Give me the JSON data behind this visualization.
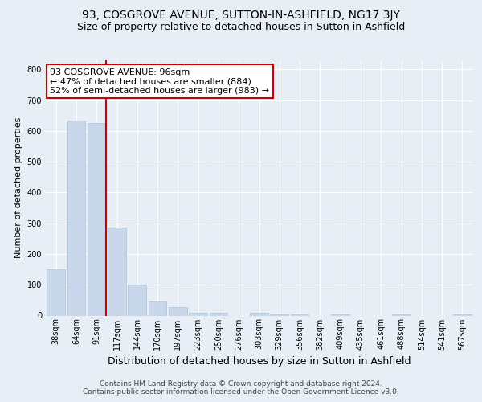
{
  "title1": "93, COSGROVE AVENUE, SUTTON-IN-ASHFIELD, NG17 3JY",
  "title2": "Size of property relative to detached houses in Sutton in Ashfield",
  "xlabel": "Distribution of detached houses by size in Sutton in Ashfield",
  "ylabel": "Number of detached properties",
  "footnote": "Contains HM Land Registry data © Crown copyright and database right 2024.\nContains public sector information licensed under the Open Government Licence v3.0.",
  "categories": [
    "38sqm",
    "64sqm",
    "91sqm",
    "117sqm",
    "144sqm",
    "170sqm",
    "197sqm",
    "223sqm",
    "250sqm",
    "276sqm",
    "303sqm",
    "329sqm",
    "356sqm",
    "382sqm",
    "409sqm",
    "435sqm",
    "461sqm",
    "488sqm",
    "514sqm",
    "541sqm",
    "567sqm"
  ],
  "values": [
    150,
    635,
    625,
    285,
    100,
    47,
    28,
    10,
    8,
    0,
    10,
    5,
    5,
    0,
    5,
    0,
    0,
    5,
    0,
    0,
    5
  ],
  "bar_color": "#c8d8ea",
  "bar_edgecolor": "#aac4d8",
  "annotation_box_text": "93 COSGROVE AVENUE: 96sqm\n← 47% of detached houses are smaller (884)\n52% of semi-detached houses are larger (983) →",
  "annotation_box_color": "#ffffff",
  "annotation_box_edgecolor": "#cc0000",
  "vline_color": "#cc0000",
  "vline_x_idx": 2,
  "ylim": [
    0,
    830
  ],
  "yticks": [
    0,
    100,
    200,
    300,
    400,
    500,
    600,
    700,
    800
  ],
  "background_color": "#e8eef5",
  "plot_background": "#e8eef5",
  "grid_color": "#ffffff",
  "title1_fontsize": 10,
  "title2_fontsize": 9,
  "xlabel_fontsize": 9,
  "ylabel_fontsize": 8,
  "tick_fontsize": 7,
  "annotation_fontsize": 8,
  "footnote_fontsize": 6.5
}
